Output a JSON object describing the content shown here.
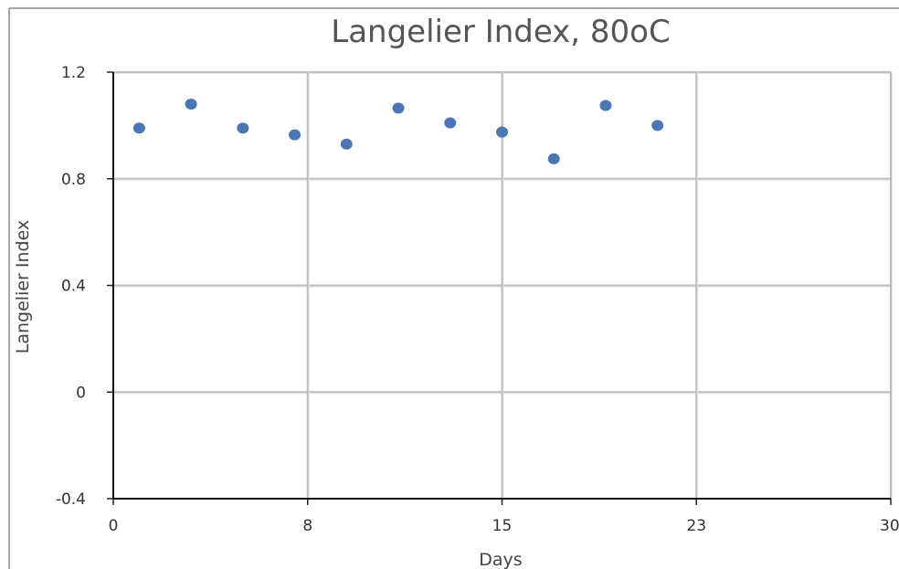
{
  "chart_data": {
    "type": "scatter",
    "title": "Langelier Index, 80oC",
    "xlabel": "Days",
    "ylabel": "Langelier Index",
    "xlim": [
      0,
      30
    ],
    "ylim": [
      -0.4,
      1.2
    ],
    "x_tick_labels": [
      "0",
      "8",
      "15",
      "23",
      "30"
    ],
    "y_tick_labels": [
      "1.2",
      "0.8",
      "0.4",
      "0",
      "-0.4"
    ],
    "grid": true,
    "legend": "none",
    "marker_color": "#4a77b4",
    "series": [
      {
        "x": [
          1,
          3,
          5,
          7,
          9,
          11,
          13,
          15,
          17,
          19,
          21
        ],
        "values": [
          0.99,
          1.08,
          0.99,
          0.965,
          0.93,
          1.065,
          1.01,
          0.975,
          0.875,
          1.075,
          1.0
        ]
      }
    ]
  }
}
